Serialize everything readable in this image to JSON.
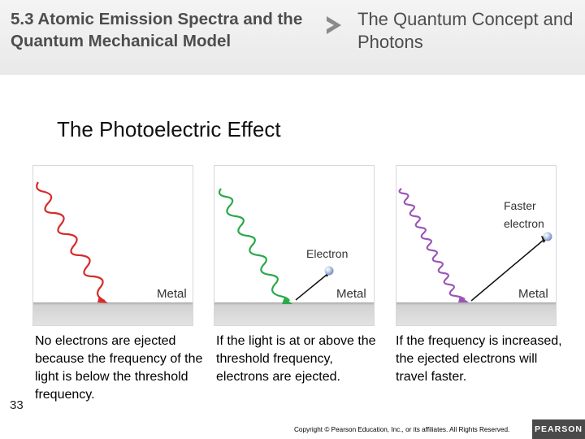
{
  "header": {
    "section_title": "5.3 Atomic Emission Spectra and the Quantum Mechanical Model",
    "separator_icon": "chevron-right-icon",
    "subsection_title": "The Quantum Concept and Photons"
  },
  "slide": {
    "heading": "The Photoelectric Effect"
  },
  "panels": [
    {
      "metal_label": "Metal",
      "light_color": "#d62b2b",
      "caption": "No electrons are ejected because the frequency of the light is below the threshold frequency."
    },
    {
      "metal_label": "Metal",
      "electron_label": "Electron",
      "light_color": "#2aa84a",
      "caption": "If the light is at or above the threshold frequency, electrons are ejected."
    },
    {
      "metal_label": "Metal",
      "electron_label": "Faster electron",
      "light_color": "#9b55b8",
      "caption": "If the frequency is increased, the ejected electrons will travel faster."
    }
  ],
  "footer": {
    "slide_number": "33",
    "copyright": "Copyright © Pearson Education, Inc., or its affiliates. All Rights Reserved.",
    "publisher": "PEARSON"
  },
  "colors": {
    "title_text": "#4d4d4d",
    "accent_arrow": "#8a8a8a",
    "metal_gray": "#cfcfcf",
    "electron_blue": "#9fb3d6"
  }
}
